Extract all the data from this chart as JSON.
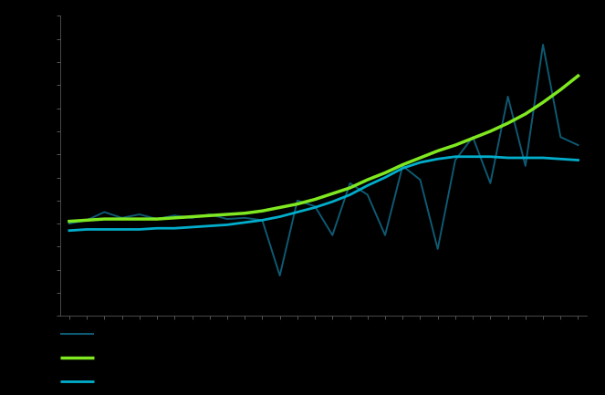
{
  "background_color": "#000000",
  "plot_bg_color": "#000000",
  "spine_color": "#555555",
  "tick_color": "#777777",
  "volatile_line": {
    "color": "#0e5a73",
    "linewidth": 1.4
  },
  "smooth_green_line": {
    "color": "#7FE820",
    "linewidth": 2.5
  },
  "smooth_cyan_line": {
    "color": "#00AECC",
    "linewidth": 2.0
  },
  "legend_items": [
    {
      "color": "#0e5a73"
    },
    {
      "color": "#7FE820"
    },
    {
      "color": "#00AECC"
    }
  ],
  "x_values": [
    1,
    2,
    3,
    4,
    5,
    6,
    7,
    8,
    9,
    10,
    11,
    12,
    13,
    14,
    15,
    16,
    17,
    18,
    19,
    20,
    21,
    22,
    23,
    24,
    25,
    26,
    27,
    28,
    29,
    30
  ],
  "volatile_values": [
    1.0,
    1.03,
    1.1,
    1.05,
    1.08,
    1.04,
    1.07,
    1.05,
    1.08,
    1.04,
    1.05,
    1.03,
    0.55,
    1.2,
    1.15,
    0.9,
    1.35,
    1.25,
    0.9,
    1.5,
    1.38,
    0.78,
    1.55,
    1.75,
    1.35,
    2.1,
    1.5,
    2.55,
    1.75,
    1.68
  ],
  "smooth_green_values": [
    1.02,
    1.03,
    1.04,
    1.04,
    1.04,
    1.04,
    1.05,
    1.06,
    1.07,
    1.08,
    1.09,
    1.11,
    1.14,
    1.17,
    1.21,
    1.26,
    1.31,
    1.38,
    1.44,
    1.51,
    1.57,
    1.63,
    1.68,
    1.74,
    1.8,
    1.87,
    1.95,
    2.05,
    2.16,
    2.28
  ],
  "smooth_cyan_values": [
    0.94,
    0.95,
    0.95,
    0.95,
    0.95,
    0.96,
    0.96,
    0.97,
    0.98,
    0.99,
    1.01,
    1.03,
    1.06,
    1.1,
    1.14,
    1.19,
    1.25,
    1.33,
    1.4,
    1.48,
    1.53,
    1.56,
    1.58,
    1.58,
    1.58,
    1.57,
    1.57,
    1.57,
    1.56,
    1.55
  ],
  "ylim": [
    0.2,
    2.8
  ],
  "xlim": [
    0.5,
    30.5
  ]
}
